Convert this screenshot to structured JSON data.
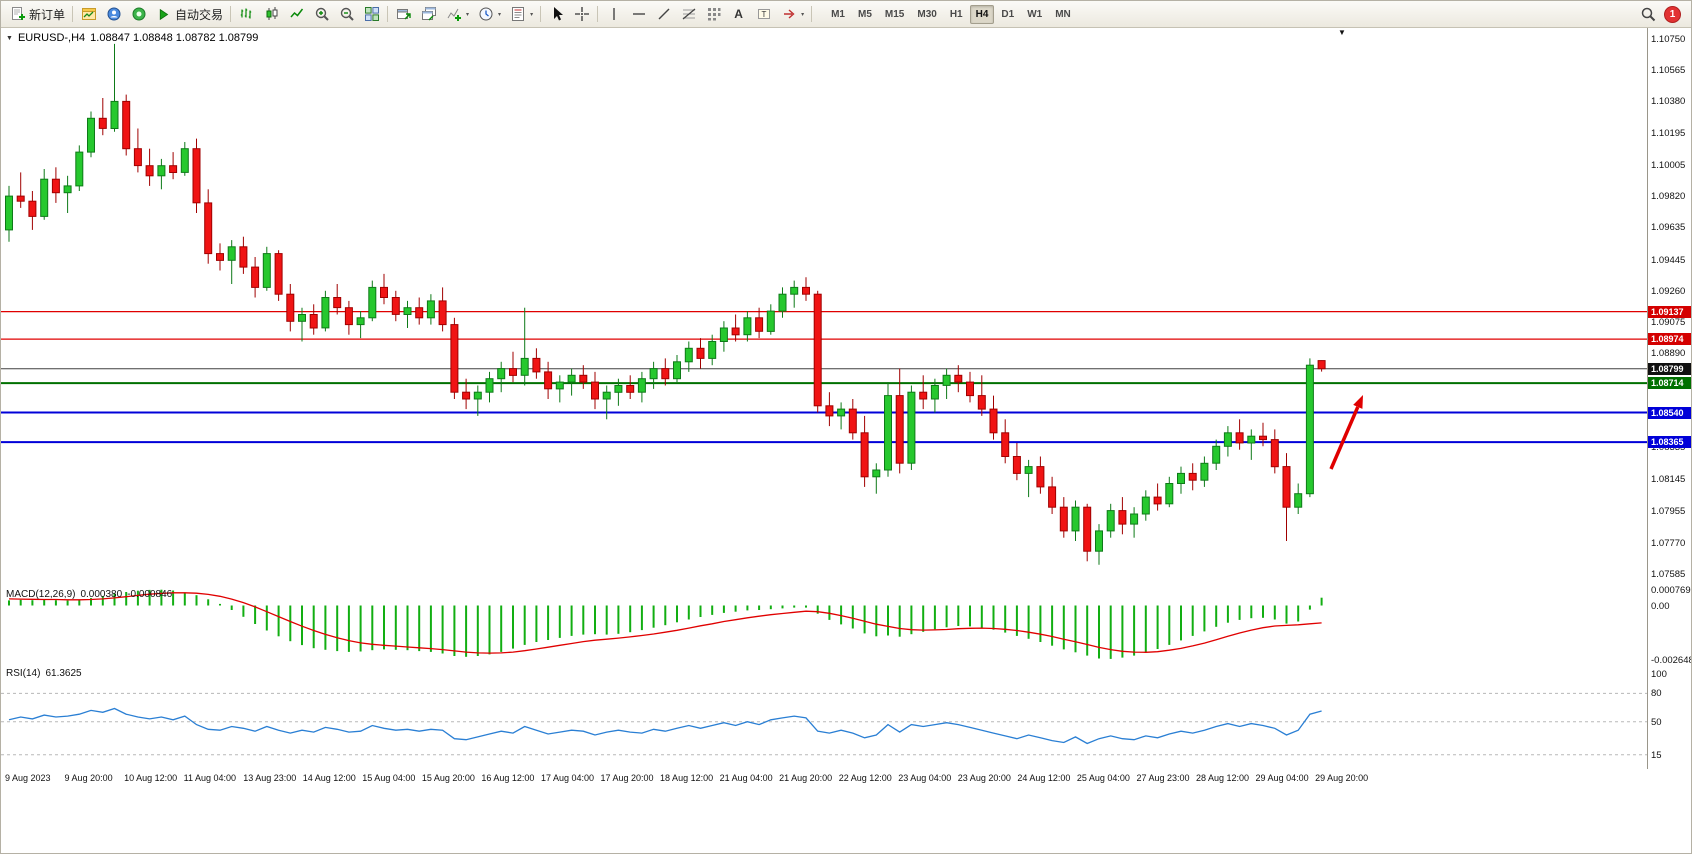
{
  "toolbar": {
    "new_order_label": "新订单",
    "autotrade_label": "自动交易",
    "text_tool_label": "A",
    "textlabel_glyph": "T",
    "caret": "▾",
    "timeframes": [
      "M1",
      "M5",
      "M15",
      "M30",
      "H1",
      "H4",
      "D1",
      "W1",
      "MN"
    ],
    "active_timeframe": "H4",
    "notification_count": "1"
  },
  "chart": {
    "collapse_arrow": "▼",
    "shift_marker": "▼",
    "title_symbol": "EURUSD-,H4",
    "title_ohlc": "1.08847 1.08848 1.08782 1.08799",
    "arrow_color": "#e00000",
    "price_ticks": [
      "1.10750",
      "1.10565",
      "1.10380",
      "1.10195",
      "1.10005",
      "1.09820",
      "1.09635",
      "1.09445",
      "1.09260",
      "1.09075",
      "1.08890",
      "1.08705",
      "1.08520",
      "1.08335",
      "1.08145",
      "1.07955",
      "1.07770",
      "1.07585"
    ],
    "hlines": [
      {
        "price": 1.09137,
        "label": "1.09137",
        "color": "#e00000",
        "label_bg": "#d40000",
        "width": 1.2
      },
      {
        "price": 1.08974,
        "label": "1.08974",
        "color": "#e00000",
        "label_bg": "#d40000",
        "width": 1.2
      },
      {
        "price": 1.08799,
        "label": "1.08799",
        "color": "#404040",
        "label_bg": "#111111",
        "width": 1
      },
      {
        "price": 1.08714,
        "label": "1.08714",
        "color": "#007000",
        "label_bg": "#007000",
        "width": 2
      },
      {
        "price": 1.0854,
        "label": "1.08540",
        "color": "#0000d8",
        "label_bg": "#0000d8",
        "width": 2
      },
      {
        "price": 1.08365,
        "label": "1.08365",
        "color": "#0000d8",
        "label_bg": "#0000d8",
        "width": 2
      }
    ]
  },
  "macd": {
    "name": "MACD(12,26,9)",
    "main_value": "0.000380",
    "signal_value": "-0.000846",
    "ticks": [
      {
        "v": 0.000769,
        "label": "0.000769"
      },
      {
        "v": 0,
        "label": "0.00"
      },
      {
        "v": -0.002648,
        "label": "-0.002648"
      }
    ]
  },
  "rsi": {
    "name": "RSI(14)",
    "value": "61.3625",
    "levels": [
      80,
      50,
      15
    ],
    "ticks": [
      {
        "v": 100,
        "label": "100"
      },
      {
        "v": 80,
        "label": "80"
      },
      {
        "v": 50,
        "label": "50"
      },
      {
        "v": 15,
        "label": "15"
      }
    ]
  },
  "time_axis": [
    "9 Aug 2023",
    "9 Aug 20:00",
    "10 Aug 12:00",
    "11 Aug 04:00",
    "13 Aug 23:00",
    "14 Aug 12:00",
    "15 Aug 04:00",
    "15 Aug 20:00",
    "16 Aug 12:00",
    "17 Aug 04:00",
    "17 Aug 20:00",
    "18 Aug 12:00",
    "21 Aug 04:00",
    "21 Aug 20:00",
    "22 Aug 12:00",
    "23 Aug 04:00",
    "23 Aug 20:00",
    "24 Aug 12:00",
    "25 Aug 04:00",
    "27 Aug 23:00",
    "28 Aug 12:00",
    "29 Aug 04:00",
    "29 Aug 20:00"
  ],
  "colors": {
    "up_fill": "#26c82e",
    "up_stroke": "#0e7a18",
    "down_fill": "#f01414",
    "down_stroke": "#a00000",
    "macd_bar": "#12ae12",
    "macd_signal": "#e00000",
    "rsi_line": "#2a7fd4",
    "rsi_level": "#b8b8b8"
  },
  "chart_data": {
    "type": "candlestick",
    "symbol": "EURUSD-",
    "timeframe": "H4",
    "title": "EURUSD-,H4 1.08847 1.08848 1.08782 1.08799",
    "main_range": [
      1.0752,
      1.1082
    ],
    "macd_range": [
      -0.00285,
      0.00095
    ],
    "rsi_range": [
      0,
      110
    ],
    "candles": [
      [
        1.0962,
        1.0988,
        1.0955,
        1.0982
      ],
      [
        1.0982,
        1.0996,
        1.0975,
        1.0979
      ],
      [
        1.0979,
        1.0985,
        1.0962,
        1.097
      ],
      [
        1.097,
        1.0998,
        1.0968,
        1.0992
      ],
      [
        1.0992,
        1.0999,
        1.0978,
        1.0984
      ],
      [
        1.0984,
        1.0994,
        1.0972,
        1.0988
      ],
      [
        1.0988,
        1.1012,
        1.0985,
        1.1008
      ],
      [
        1.1008,
        1.1032,
        1.1005,
        1.1028
      ],
      [
        1.1028,
        1.104,
        1.1018,
        1.1022
      ],
      [
        1.1022,
        1.1072,
        1.102,
        1.1038
      ],
      [
        1.1038,
        1.1042,
        1.1006,
        1.101
      ],
      [
        1.101,
        1.1022,
        1.0996,
        1.1
      ],
      [
        1.1,
        1.101,
        1.0988,
        1.0994
      ],
      [
        1.0994,
        1.1004,
        1.0986,
        1.1
      ],
      [
        1.1,
        1.1008,
        1.0992,
        1.0996
      ],
      [
        1.0996,
        1.1014,
        1.0994,
        1.101
      ],
      [
        1.101,
        1.1016,
        1.0972,
        1.0978
      ],
      [
        1.0978,
        1.0986,
        1.0942,
        1.0948
      ],
      [
        1.0948,
        1.0954,
        1.0938,
        1.0944
      ],
      [
        1.0944,
        1.0956,
        1.093,
        1.0952
      ],
      [
        1.0952,
        1.0958,
        1.0936,
        1.094
      ],
      [
        1.094,
        1.0946,
        1.0922,
        1.0928
      ],
      [
        1.0928,
        1.0952,
        1.0926,
        1.0948
      ],
      [
        1.0948,
        1.095,
        1.092,
        1.0924
      ],
      [
        1.0924,
        1.093,
        1.0902,
        1.0908
      ],
      [
        1.0908,
        1.0916,
        1.0896,
        1.0912
      ],
      [
        1.0912,
        1.0918,
        1.09,
        1.0904
      ],
      [
        1.0904,
        1.0926,
        1.0902,
        1.0922
      ],
      [
        1.0922,
        1.093,
        1.0912,
        1.0916
      ],
      [
        1.0916,
        1.092,
        1.09,
        1.0906
      ],
      [
        1.0906,
        1.0914,
        1.0898,
        1.091
      ],
      [
        1.091,
        1.0932,
        1.0908,
        1.0928
      ],
      [
        1.0928,
        1.0936,
        1.0918,
        1.0922
      ],
      [
        1.0922,
        1.0926,
        1.0908,
        1.0912
      ],
      [
        1.0912,
        1.092,
        1.0904,
        1.0916
      ],
      [
        1.0916,
        1.0922,
        1.0906,
        1.091
      ],
      [
        1.091,
        1.0924,
        1.0906,
        1.092
      ],
      [
        1.092,
        1.0928,
        1.0902,
        1.0906
      ],
      [
        1.0906,
        1.091,
        1.0862,
        1.0866
      ],
      [
        1.0866,
        1.0874,
        1.0856,
        1.0862
      ],
      [
        1.0862,
        1.087,
        1.0852,
        1.0866
      ],
      [
        1.0866,
        1.0878,
        1.086,
        1.0874
      ],
      [
        1.0874,
        1.0884,
        1.0866,
        1.088
      ],
      [
        1.088,
        1.089,
        1.0872,
        1.0876
      ],
      [
        1.0876,
        1.0916,
        1.087,
        1.0886
      ],
      [
        1.0886,
        1.0892,
        1.0874,
        1.0878
      ],
      [
        1.0878,
        1.0884,
        1.0862,
        1.0868
      ],
      [
        1.0868,
        1.0876,
        1.086,
        1.0872
      ],
      [
        1.0872,
        1.088,
        1.0864,
        1.0876
      ],
      [
        1.0876,
        1.0882,
        1.0868,
        1.0872
      ],
      [
        1.0872,
        1.0878,
        1.0856,
        1.0862
      ],
      [
        1.0862,
        1.087,
        1.085,
        1.0866
      ],
      [
        1.0866,
        1.0874,
        1.0858,
        1.087
      ],
      [
        1.087,
        1.0876,
        1.0862,
        1.0866
      ],
      [
        1.0866,
        1.0878,
        1.086,
        1.0874
      ],
      [
        1.0874,
        1.0884,
        1.0868,
        1.088
      ],
      [
        1.088,
        1.0886,
        1.087,
        1.0874
      ],
      [
        1.0874,
        1.0888,
        1.0872,
        1.0884
      ],
      [
        1.0884,
        1.0896,
        1.0878,
        1.0892
      ],
      [
        1.0892,
        1.0898,
        1.088,
        1.0886
      ],
      [
        1.0886,
        1.09,
        1.0882,
        1.0896
      ],
      [
        1.0896,
        1.0908,
        1.089,
        1.0904
      ],
      [
        1.0904,
        1.0912,
        1.0896,
        1.09
      ],
      [
        1.09,
        1.0914,
        1.0896,
        1.091
      ],
      [
        1.091,
        1.0916,
        1.0898,
        1.0902
      ],
      [
        1.0902,
        1.0918,
        1.09,
        1.0914
      ],
      [
        1.0914,
        1.0928,
        1.091,
        1.0924
      ],
      [
        1.0924,
        1.0932,
        1.0916,
        1.0928
      ],
      [
        1.0928,
        1.0934,
        1.092,
        1.0924
      ],
      [
        1.0924,
        1.0926,
        1.0854,
        1.0858
      ],
      [
        1.0858,
        1.0866,
        1.0846,
        1.0852
      ],
      [
        1.0852,
        1.086,
        1.0844,
        1.0856
      ],
      [
        1.0856,
        1.0862,
        1.0838,
        1.0842
      ],
      [
        1.0842,
        1.0852,
        1.081,
        1.0816
      ],
      [
        1.0816,
        1.0824,
        1.0806,
        1.082
      ],
      [
        1.082,
        1.0872,
        1.0816,
        1.0864
      ],
      [
        1.0864,
        1.088,
        1.0818,
        1.0824
      ],
      [
        1.0824,
        1.087,
        1.082,
        1.0866
      ],
      [
        1.0866,
        1.0876,
        1.0856,
        1.0862
      ],
      [
        1.0862,
        1.0874,
        1.0854,
        1.087
      ],
      [
        1.087,
        1.088,
        1.0862,
        1.0876
      ],
      [
        1.0876,
        1.0882,
        1.0866,
        1.0872
      ],
      [
        1.0872,
        1.0878,
        1.086,
        1.0864
      ],
      [
        1.0864,
        1.0876,
        1.0852,
        1.0856
      ],
      [
        1.0856,
        1.0864,
        1.0838,
        1.0842
      ],
      [
        1.0842,
        1.085,
        1.0824,
        1.0828
      ],
      [
        1.0828,
        1.0836,
        1.0814,
        1.0818
      ],
      [
        1.0818,
        1.0826,
        1.0804,
        1.0822
      ],
      [
        1.0822,
        1.0828,
        1.0806,
        1.081
      ],
      [
        1.081,
        1.0816,
        1.0794,
        1.0798
      ],
      [
        1.0798,
        1.0804,
        1.078,
        1.0784
      ],
      [
        1.0784,
        1.0802,
        1.0778,
        1.0798
      ],
      [
        1.0798,
        1.08,
        1.0766,
        1.0772
      ],
      [
        1.0772,
        1.0788,
        1.0764,
        1.0784
      ],
      [
        1.0784,
        1.08,
        1.078,
        1.0796
      ],
      [
        1.0796,
        1.0804,
        1.0782,
        1.0788
      ],
      [
        1.0788,
        1.0798,
        1.078,
        1.0794
      ],
      [
        1.0794,
        1.0808,
        1.079,
        1.0804
      ],
      [
        1.0804,
        1.0812,
        1.0796,
        1.08
      ],
      [
        1.08,
        1.0816,
        1.0798,
        1.0812
      ],
      [
        1.0812,
        1.0822,
        1.0806,
        1.0818
      ],
      [
        1.0818,
        1.0824,
        1.0808,
        1.0814
      ],
      [
        1.0814,
        1.0828,
        1.081,
        1.0824
      ],
      [
        1.0824,
        1.0838,
        1.082,
        1.0834
      ],
      [
        1.0834,
        1.0846,
        1.0828,
        1.0842
      ],
      [
        1.0842,
        1.085,
        1.0832,
        1.0836
      ],
      [
        1.0836,
        1.0844,
        1.0826,
        1.084
      ],
      [
        1.084,
        1.0848,
        1.0834,
        1.0838
      ],
      [
        1.0838,
        1.0844,
        1.0818,
        1.0822
      ],
      [
        1.0822,
        1.083,
        1.0778,
        1.0798
      ],
      [
        1.0798,
        1.0812,
        1.0794,
        1.0806
      ],
      [
        1.0806,
        1.0886,
        1.0804,
        1.0882
      ],
      [
        1.08847,
        1.08848,
        1.08782,
        1.08799
      ]
    ],
    "macd_histogram": [
      0.00025,
      0.00028,
      0.00026,
      0.00028,
      0.00026,
      0.00024,
      0.00028,
      0.00036,
      0.00046,
      0.00058,
      0.00066,
      0.00072,
      0.00076,
      0.00077,
      0.00073,
      0.00064,
      0.0005,
      0.0003,
      8e-05,
      -0.00022,
      -0.00055,
      -0.0009,
      -0.00122,
      -0.0015,
      -0.00174,
      -0.00193,
      -0.00208,
      -0.00216,
      -0.00222,
      -0.00226,
      -0.00224,
      -0.00218,
      -0.00214,
      -0.00216,
      -0.00218,
      -0.00222,
      -0.00226,
      -0.00234,
      -0.00246,
      -0.0025,
      -0.00246,
      -0.00238,
      -0.00226,
      -0.0021,
      -0.00192,
      -0.00178,
      -0.00168,
      -0.00158,
      -0.00148,
      -0.00142,
      -0.0014,
      -0.00142,
      -0.00138,
      -0.0013,
      -0.0012,
      -0.00108,
      -0.00096,
      -0.00082,
      -0.00068,
      -0.00056,
      -0.00046,
      -0.00036,
      -0.0003,
      -0.00024,
      -0.00022,
      -0.00018,
      -0.00014,
      -0.0001,
      -0.0001,
      -0.0004,
      -0.0007,
      -0.00092,
      -0.00112,
      -0.00136,
      -0.0015,
      -0.00146,
      -0.00152,
      -0.0014,
      -0.00128,
      -0.00116,
      -0.00106,
      -0.001,
      -0.00102,
      -0.00108,
      -0.00118,
      -0.00132,
      -0.00148,
      -0.00162,
      -0.00178,
      -0.00196,
      -0.00214,
      -0.00228,
      -0.00244,
      -0.00258,
      -0.0026,
      -0.00254,
      -0.00244,
      -0.0023,
      -0.00212,
      -0.00192,
      -0.0017,
      -0.00148,
      -0.00126,
      -0.00104,
      -0.00084,
      -0.0007,
      -0.00062,
      -0.0006,
      -0.00068,
      -0.00088,
      -0.00078,
      -0.0002,
      0.00038
    ],
    "macd_signal": [
      0.00032,
      0.00031,
      0.0003,
      0.00029,
      0.00029,
      0.00028,
      0.00028,
      0.00029,
      0.00032,
      0.00037,
      0.00043,
      0.00049,
      0.00055,
      0.00059,
      0.00062,
      0.00062,
      0.0006,
      0.00054,
      0.00045,
      0.00031,
      0.00014,
      -7e-05,
      -0.0003,
      -0.00054,
      -0.00078,
      -0.00101,
      -0.00122,
      -0.00141,
      -0.00157,
      -0.00171,
      -0.00182,
      -0.00189,
      -0.00194,
      -0.00198,
      -0.00202,
      -0.00206,
      -0.0021,
      -0.00215,
      -0.00221,
      -0.00227,
      -0.00231,
      -0.00232,
      -0.00231,
      -0.00227,
      -0.0022,
      -0.00212,
      -0.00203,
      -0.00194,
      -0.00185,
      -0.00176,
      -0.00169,
      -0.00164,
      -0.00159,
      -0.00153,
      -0.00146,
      -0.00139,
      -0.0013,
      -0.00121,
      -0.0011,
      -0.00099,
      -0.00089,
      -0.00078,
      -0.00069,
      -0.0006,
      -0.00052,
      -0.00045,
      -0.00039,
      -0.00033,
      -0.00028,
      -0.0003,
      -0.00038,
      -0.00049,
      -0.00062,
      -0.00077,
      -0.00091,
      -0.00102,
      -0.00112,
      -0.00118,
      -0.0012,
      -0.00119,
      -0.00117,
      -0.00113,
      -0.00111,
      -0.0011,
      -0.00112,
      -0.00116,
      -0.00122,
      -0.0013,
      -0.0014,
      -0.00151,
      -0.00164,
      -0.00177,
      -0.0019,
      -0.00204,
      -0.00215,
      -0.00223,
      -0.00227,
      -0.00228,
      -0.00225,
      -0.00218,
      -0.00209,
      -0.00197,
      -0.00183,
      -0.00167,
      -0.0015,
      -0.00134,
      -0.0012,
      -0.00108,
      -0.001,
      -0.00097,
      -0.00094,
      -0.00089,
      -0.000846
    ],
    "rsi_values": [
      52,
      55,
      53,
      57,
      55,
      56,
      58,
      62,
      60,
      64,
      58,
      55,
      53,
      55,
      52,
      56,
      47,
      42,
      41,
      45,
      43,
      40,
      45,
      41,
      38,
      41,
      39,
      44,
      42,
      39,
      40,
      46,
      43,
      41,
      42,
      40,
      42,
      41,
      32,
      31,
      34,
      37,
      40,
      38,
      45,
      41,
      37,
      39,
      41,
      40,
      36,
      39,
      41,
      39,
      38,
      42,
      40,
      43,
      46,
      43,
      46,
      49,
      46,
      50,
      47,
      52,
      54,
      56,
      54,
      40,
      38,
      41,
      38,
      33,
      36,
      47,
      39,
      47,
      45,
      47,
      49,
      47,
      44,
      41,
      38,
      35,
      32,
      36,
      33,
      30,
      28,
      34,
      27,
      32,
      35,
      32,
      31,
      35,
      33,
      37,
      40,
      38,
      41,
      45,
      48,
      45,
      48,
      46,
      43,
      36,
      41,
      58,
      61.36
    ]
  }
}
